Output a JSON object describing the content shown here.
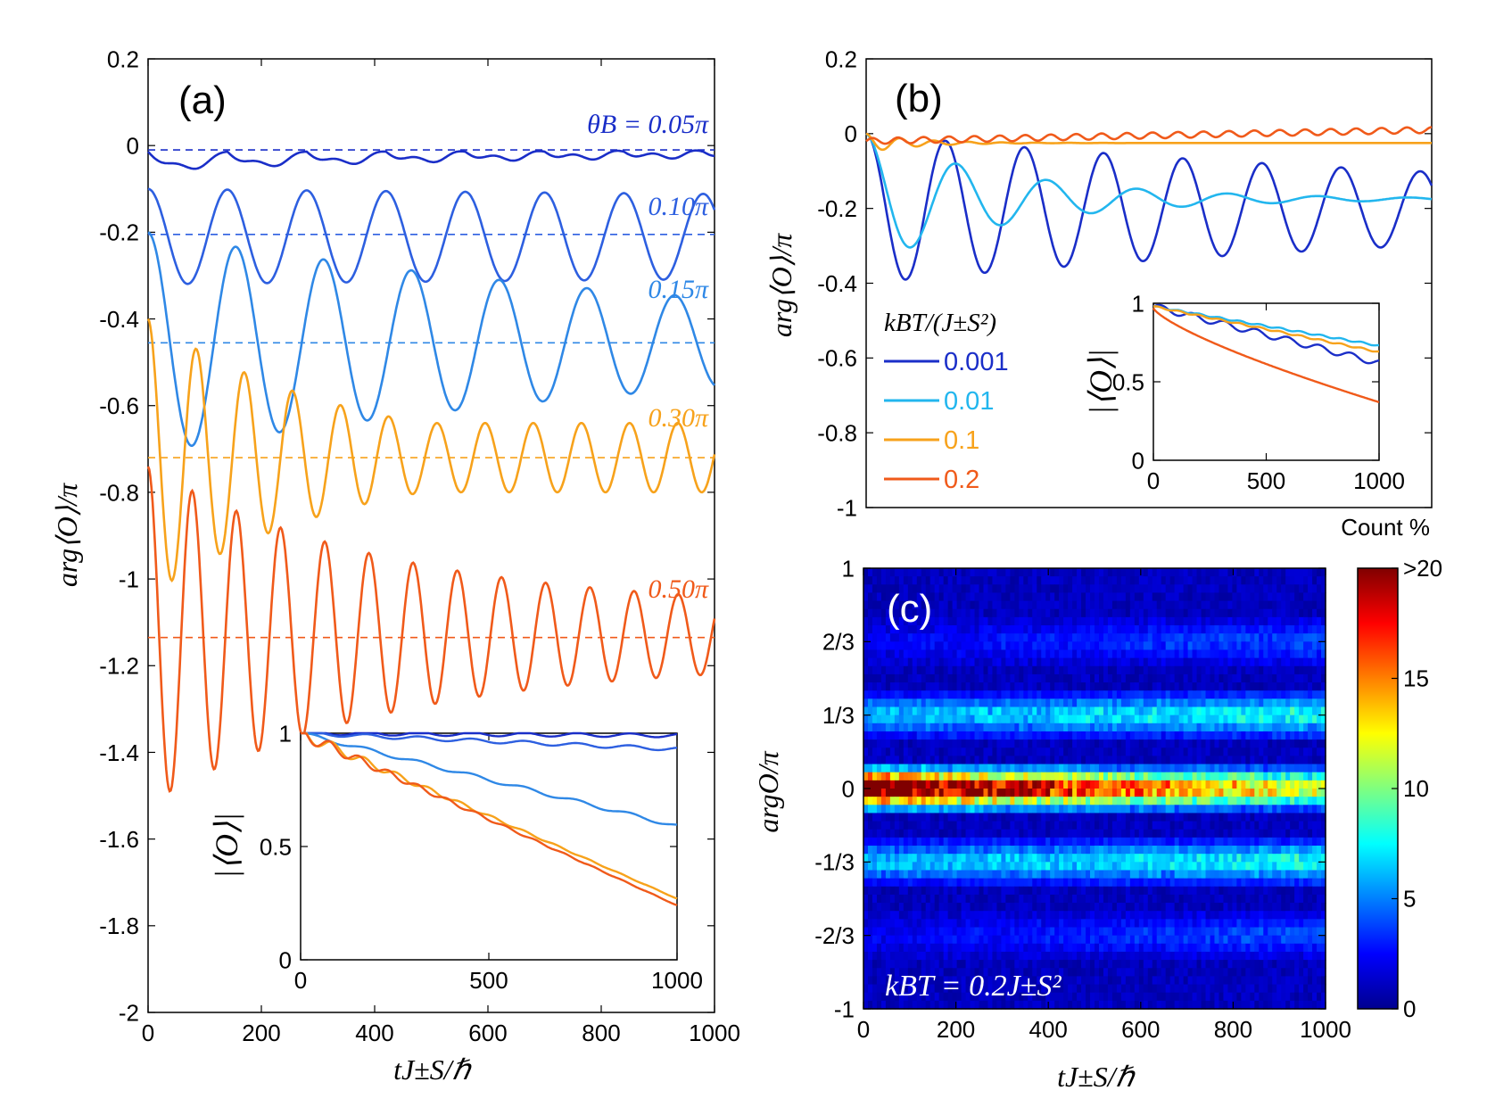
{
  "colors": {
    "c005": "#1a2ec8",
    "c010": "#2d5fe0",
    "c015": "#2f88e6",
    "c030": "#f7a21b",
    "c050": "#f05a1a",
    "t0001": "#1a2ec8",
    "t001": "#22b6ee",
    "t01": "#f7a21b",
    "t02": "#f05a1a"
  },
  "chart_data": [
    {
      "id": "a",
      "type": "line",
      "panel_label": "(a)",
      "xlabel": "tJ±S/ℏ",
      "ylabel": "arg⟨O⟩/π",
      "xlim": [
        0,
        1000
      ],
      "ylim": [
        -2,
        0.2
      ],
      "xticks": [
        "0",
        "200",
        "400",
        "600",
        "800",
        "1000"
      ],
      "yticks": [
        "0.2",
        "0",
        "-0.2",
        "-0.4",
        "-0.6",
        "-0.8",
        "-1",
        "-1.2",
        "-1.4",
        "-1.6",
        "-1.8",
        "-2"
      ],
      "series": [
        {
          "name": "θB = 0.05π",
          "label": "θB = 0.05π",
          "color": "#1a2ec8",
          "start": 0.0,
          "mean": -0.014,
          "amp": 0.04,
          "period": 140,
          "decay": 700,
          "osc": "-"
        },
        {
          "name": "0.10π",
          "label": "0.10π",
          "color": "#2d5fe0",
          "start": -0.1,
          "mean": -0.21,
          "amp": 0.11,
          "period": 140,
          "decay": 9000,
          "osc": "cos"
        },
        {
          "name": "0.15π",
          "label": "0.15π",
          "color": "#2f88e6",
          "start": -0.2,
          "mean": -0.455,
          "amp": 0.26,
          "period": 155,
          "decay": 1100,
          "osc": "cos"
        },
        {
          "name": "0.30π",
          "label": "0.30π",
          "color": "#f7a21b",
          "start": -0.4,
          "mean": -0.72,
          "amp": 0.32,
          "period": 85,
          "decay": 350,
          "osc": "cos"
        },
        {
          "name": "0.50π",
          "label": "0.50π",
          "color": "#f05a1a",
          "start": -0.8,
          "mean": -1.13,
          "amp": 0.33,
          "period": 78,
          "decay": 420,
          "osc": "cos",
          "floor": 0.18
        }
      ],
      "dashed_levels": [
        -0.01,
        -0.205,
        -0.455,
        -0.72,
        -1.135
      ],
      "inset": {
        "ylabel": "|⟨O⟩|",
        "xlim": [
          0,
          1000
        ],
        "ylim": [
          0,
          1
        ],
        "xticks": [
          "0",
          "500",
          "1000"
        ],
        "yticks": [
          "1",
          "0.5",
          "0"
        ],
        "series": [
          {
            "name": "0.05π",
            "color": "#1a2ec8",
            "end": 0.99
          },
          {
            "name": "0.10π",
            "color": "#2d5fe0",
            "end": 0.93
          },
          {
            "name": "0.15π",
            "color": "#2f88e6",
            "end": 0.59
          },
          {
            "name": "0.30π",
            "color": "#f7a21b",
            "end": 0.27
          },
          {
            "name": "0.50π",
            "color": "#f05a1a",
            "end": 0.24
          }
        ]
      }
    },
    {
      "id": "b",
      "type": "line",
      "panel_label": "(b)",
      "xlabel": "",
      "ylabel": "arg⟨O⟩/π",
      "xlim": [
        0,
        1000
      ],
      "ylim": [
        -1,
        0.2
      ],
      "xticks": [],
      "yticks": [
        "0.2",
        "0",
        "-0.2",
        "-0.4",
        "-0.6",
        "-0.8",
        "-1"
      ],
      "legend_title": "kBT/(J±S²)",
      "series": [
        {
          "name": "0.001",
          "label": "0.001",
          "color": "#1a2ec8",
          "mean": -0.2,
          "amp": 0.25,
          "period": 140,
          "decay": 1400
        },
        {
          "name": "0.01",
          "label": "0.01",
          "color": "#22b6ee",
          "mean": -0.175,
          "amp": 0.2,
          "period": 160,
          "decay": 260
        },
        {
          "name": "0.1",
          "label": "0.1",
          "color": "#f7a21b",
          "mean": -0.025,
          "amp": 0.03,
          "period": 60,
          "decay": 90
        },
        {
          "name": "0.2",
          "label": "0.2",
          "color": "#f05a1a",
          "mean": -0.02,
          "amp": 0.01,
          "period": 45,
          "decay": 100000
        }
      ],
      "inset": {
        "ylabel": "|⟨O⟩|",
        "xlim": [
          0,
          1000
        ],
        "ylim": [
          0,
          1
        ],
        "xticks": [
          "0",
          "500",
          "1000"
        ],
        "yticks": [
          "1",
          "0.5",
          "0"
        ],
        "series": [
          {
            "name": "0.001",
            "color": "#1a2ec8",
            "end": 0.62
          },
          {
            "name": "0.01",
            "color": "#22b6ee",
            "end": 0.73
          },
          {
            "name": "0.1",
            "color": "#f7a21b",
            "end": 0.69
          },
          {
            "name": "0.2",
            "color": "#f05a1a",
            "end": 0.37
          }
        ]
      }
    },
    {
      "id": "c",
      "type": "heatmap",
      "panel_label": "(c)",
      "xlabel": "tJ±S/ℏ",
      "ylabel": "argO/π",
      "xlim": [
        0,
        1000
      ],
      "ylim": [
        -1,
        1
      ],
      "xticks": [
        "0",
        "200",
        "400",
        "600",
        "800",
        "1000"
      ],
      "yticks": [
        "1",
        "2/3",
        "1/3",
        "0",
        "-1/3",
        "-2/3",
        "-1"
      ],
      "annotation": "kBT = 0.2J±S²",
      "colorbar": {
        "title": "Count %",
        "ticks": [
          ">20",
          "15",
          "10",
          "5",
          "0"
        ],
        "range": [
          0,
          20
        ]
      },
      "bands": [
        {
          "center": 0.0,
          "peak_start": 22,
          "peak_end": 11,
          "label": "argO = 0"
        },
        {
          "center": 0.3333,
          "peak_start": 5,
          "peak_end": 7,
          "label": "argO = 1/3"
        },
        {
          "center": -0.3333,
          "peak_start": 5,
          "peak_end": 7,
          "label": "argO = -1/3"
        },
        {
          "center": 0.6667,
          "peak_start": 1,
          "peak_end": 3,
          "label": "argO = 2/3"
        },
        {
          "center": -0.6667,
          "peak_start": 1,
          "peak_end": 3,
          "label": "argO = -2/3"
        }
      ]
    }
  ]
}
